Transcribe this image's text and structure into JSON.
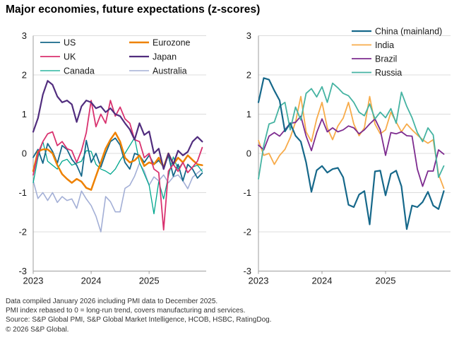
{
  "title": "Major economies, future expectations (z-scores)",
  "footnotes": [
    "Data compiled January 2026 including PMI data to December 2025.",
    "PMI index rebased to 0 = long-run trend, covers manufacturing and services.",
    "Source: S&P Global PMI, S&P Global Market Intelligence, HCOB, HSBC, RatingDog.",
    "© 2026 S&P Global."
  ],
  "chart_data": [
    {
      "type": "line",
      "panel": "left",
      "x_start": "2023-01",
      "x_step": "1 month",
      "n_points": 36,
      "x_tick_labels": [
        "2023",
        "2024",
        "2025"
      ],
      "ylim": [
        -3,
        3
      ],
      "y_ticks": [
        3,
        2,
        1,
        0,
        -1,
        -2,
        -3
      ],
      "grid": "horizontal",
      "legend_position": "top-left inside plot, 2 columns",
      "series": [
        {
          "name": "US",
          "color": "#16688a",
          "stroke_width": 1.8,
          "values": [
            -0.1,
            0.1,
            -0.25,
            0.25,
            0.05,
            -0.25,
            0.2,
            0.1,
            -0.15,
            -0.3,
            -0.58,
            0.33,
            -0.23,
            0.0,
            -0.35,
            0.0,
            0.3,
            0.39,
            0.21,
            -0.23,
            -0.4,
            0.0,
            -0.05,
            -0.23,
            -0.05,
            -0.28,
            -0.18,
            -0.35,
            -0.05,
            -0.58,
            -0.28,
            -0.7,
            -0.28,
            -0.4,
            -0.63,
            -0.5
          ]
        },
        {
          "name": "UK",
          "color": "#d9326f",
          "stroke_width": 1.8,
          "values": [
            -0.55,
            0.0,
            0.3,
            0.5,
            0.55,
            0.2,
            0.3,
            0.12,
            0.07,
            -0.23,
            0.07,
            0.53,
            1.35,
            0.68,
            1.0,
            0.77,
            1.35,
            0.95,
            1.18,
            0.88,
            0.77,
            0.35,
            0.3,
            -0.11,
            0.0,
            -0.4,
            -0.49,
            -1.95,
            -0.45,
            -0.28,
            -0.46,
            -0.23,
            -0.49,
            -0.35,
            -0.2,
            0.15
          ]
        },
        {
          "name": "Canada",
          "color": "#00a78e",
          "stroke_width": 1.3,
          "values": [
            -0.75,
            -0.1,
            0.3,
            -0.2,
            -0.3,
            -0.4,
            -0.2,
            -0.15,
            -0.3,
            -0.25,
            -0.2,
            0.07,
            0.05,
            -0.28,
            -0.4,
            -0.45,
            -0.53,
            -0.4,
            -0.18,
            0.0,
            0.2,
            0.4,
            -0.23,
            -0.52,
            -0.81,
            -1.54,
            -0.72,
            -1.16,
            -0.58,
            -0.09,
            -0.4,
            -0.23,
            -0.49,
            -0.35,
            -0.3,
            -0.46
          ]
        },
        {
          "name": "Eurozone",
          "color": "#ee8100",
          "stroke_width": 2.5,
          "values": [
            -0.45,
            0.05,
            0.1,
            0.1,
            0.0,
            -0.3,
            -0.53,
            -0.65,
            -0.75,
            -0.65,
            -0.72,
            -0.88,
            -0.93,
            -0.58,
            -0.23,
            0.12,
            0.35,
            0.53,
            0.3,
            -0.11,
            -0.23,
            -0.18,
            -0.05,
            -0.32,
            -0.23,
            -0.28,
            -0.11,
            -0.35,
            0.0,
            -0.28,
            -0.11,
            -0.23,
            -0.05,
            -0.17,
            -0.28,
            -0.3
          ]
        },
        {
          "name": "Japan",
          "color": "#512d7e",
          "stroke_width": 2.2,
          "values": [
            0.55,
            0.9,
            1.5,
            1.85,
            1.75,
            1.45,
            1.3,
            1.35,
            1.25,
            0.8,
            1.2,
            1.35,
            1.3,
            1.15,
            1.2,
            1.05,
            1.15,
            1.0,
            0.95,
            0.77,
            0.61,
            0.35,
            0.77,
            0.47,
            0.56,
            0.0,
            0.12,
            -0.4,
            0.0,
            -0.28,
            0.07,
            -0.05,
            0.04,
            0.3,
            0.42,
            0.3
          ]
        },
        {
          "name": "Australia",
          "color": "#a3afd6",
          "stroke_width": 1.6,
          "values": [
            -0.7,
            -1.15,
            -1.0,
            -1.2,
            -1.0,
            -1.25,
            -1.1,
            -1.2,
            -1.16,
            -1.4,
            -0.96,
            -1.16,
            -1.33,
            -1.6,
            -2.0,
            -1.1,
            -1.23,
            -1.49,
            -1.49,
            -0.89,
            -0.81,
            -0.58,
            -0.25,
            -0.45,
            -0.81,
            -0.6,
            -0.7,
            -0.55,
            -0.75,
            -0.6,
            -0.55,
            -0.7,
            -0.9,
            -0.61,
            -0.5,
            -0.4
          ]
        }
      ]
    },
    {
      "type": "line",
      "panel": "right",
      "x_start": "2023-01",
      "x_step": "1 month",
      "n_points": 36,
      "x_tick_labels": [
        "2023",
        "2024",
        "2025"
      ],
      "ylim": [
        -3,
        3
      ],
      "y_ticks": [
        3,
        2,
        1,
        0,
        -1,
        -2,
        -3
      ],
      "grid": "horizontal",
      "legend_position": "top-right inside plot, 1 column",
      "series": [
        {
          "name": "China (mainland)",
          "color": "#16688a",
          "stroke_width": 2.2,
          "values": [
            1.3,
            1.92,
            1.88,
            1.6,
            1.35,
            0.56,
            0.77,
            0.45,
            0.3,
            -0.23,
            -0.98,
            -0.43,
            -0.32,
            -0.49,
            -0.4,
            -0.37,
            -0.61,
            -1.31,
            -1.37,
            -1.05,
            -0.96,
            -1.81,
            -0.46,
            -0.44,
            -1.07,
            -0.52,
            -0.44,
            -0.84,
            -1.93,
            -1.33,
            -1.37,
            -1.24,
            -0.98,
            -1.33,
            -1.42,
            -0.96
          ]
        },
        {
          "name": "India",
          "color": "#f7ab4a",
          "stroke_width": 1.8,
          "values": [
            0.33,
            -0.05,
            0.0,
            -0.28,
            -0.05,
            0.1,
            0.4,
            0.8,
            1.45,
            0.55,
            0.3,
            0.88,
            1.3,
            0.65,
            0.35,
            0.7,
            0.9,
            1.3,
            0.75,
            0.45,
            0.65,
            1.45,
            0.75,
            0.5,
            0.6,
            1.05,
            0.8,
            0.55,
            0.75,
            0.6,
            0.47,
            0.35,
            0.26,
            0.35,
            -0.53,
            -0.89
          ]
        },
        {
          "name": "Brazil",
          "color": "#7d2b8f",
          "stroke_width": 1.8,
          "values": [
            0.21,
            0.09,
            0.44,
            0.53,
            0.44,
            0.6,
            0.77,
            0.79,
            0.95,
            0.44,
            0.07,
            0.53,
            0.88,
            0.55,
            0.65,
            0.55,
            0.6,
            0.7,
            0.65,
            0.5,
            0.6,
            0.75,
            0.88,
            0.6,
            -0.05,
            0.53,
            0.5,
            0.55,
            0.45,
            0.44,
            -0.4,
            -0.84,
            -0.45,
            -0.45,
            0.09,
            -0.02
          ]
        },
        {
          "name": "Russia",
          "color": "#45b3a2",
          "stroke_width": 1.8,
          "values": [
            -0.65,
            0.2,
            0.75,
            0.8,
            1.2,
            1.3,
            0.6,
            1.18,
            0.85,
            1.53,
            1.65,
            1.44,
            1.7,
            1.3,
            1.79,
            1.67,
            1.53,
            1.47,
            1.3,
            1.05,
            0.96,
            1.26,
            0.88,
            1.05,
            0.91,
            1.14,
            0.77,
            1.56,
            1.2,
            0.91,
            0.53,
            0.3,
            0.65,
            0.47,
            -0.61,
            -0.32
          ]
        }
      ]
    }
  ]
}
